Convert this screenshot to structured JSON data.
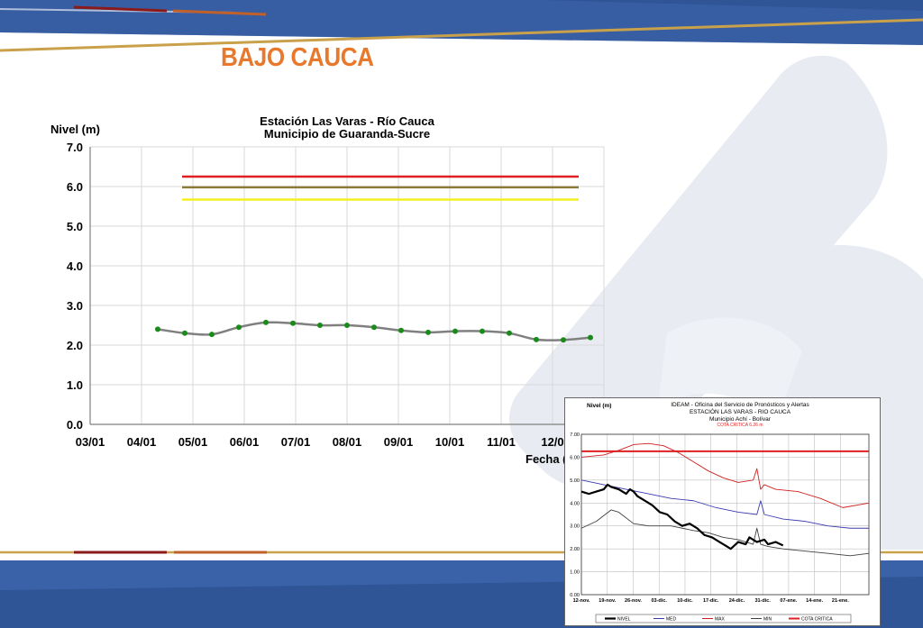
{
  "slide": {
    "title": "BAJO CAUCA"
  },
  "colors": {
    "title": "#e8792c",
    "banner_blue": "#2f5597",
    "gold": "#c9a14a",
    "dark_red": "#8b1a1a"
  },
  "chart_data": [
    {
      "type": "line",
      "title": "Estación Las Varas - Río Cauca",
      "subtitle": "Municipio de Guaranda-Sucre",
      "ylabel": "Nivel (m)",
      "xlabel": "Fecha (",
      "ylim": [
        0,
        7
      ],
      "xlim": [
        0,
        9.5
      ],
      "yticks": [
        "0.0",
        "1.0",
        "2.0",
        "3.0",
        "4.0",
        "5.0",
        "6.0",
        "7.0"
      ],
      "xticks": [
        "03/01",
        "04/01",
        "05/01",
        "06/01",
        "07/01",
        "08/01",
        "09/01",
        "10/01",
        "11/01",
        "12/0"
      ],
      "grid": true,
      "series": [
        {
          "color": "#808080",
          "marker_color": "#1a8a1a",
          "x": [
            1.25,
            1.75,
            2.25,
            2.75,
            3.25,
            3.75,
            4.25,
            4.75,
            5.25,
            5.75,
            6.25,
            6.75,
            7.25,
            7.75,
            8.25,
            8.75,
            9.25
          ],
          "y": [
            2.4,
            2.3,
            2.27,
            2.45,
            2.57,
            2.55,
            2.5,
            2.5,
            2.45,
            2.37,
            2.32,
            2.35,
            2.35,
            2.3,
            2.14,
            2.13,
            2.19
          ]
        }
      ],
      "thresholds": [
        {
          "color": "#e02020",
          "value": 6.25,
          "x0": 1.7,
          "x1": 9.5
        },
        {
          "color": "#8b7a3a",
          "value": 5.98,
          "x0": 1.7,
          "x1": 9.5
        },
        {
          "color": "#f4f020",
          "value": 5.67,
          "x0": 1.7,
          "x1": 9.5
        }
      ]
    },
    {
      "type": "line",
      "title": "IDEAM - Oficina del Servicio de Pronósticos y Alertas",
      "subtitle": "ESTACIÓN LAS VARAS - RIO CAUCA",
      "subtitle2": "Municipio Achí - Bolívar",
      "note": "COTA CRITICA 6.26 m",
      "ylabel": "Nivel (m)",
      "ylim": [
        0,
        7
      ],
      "yticks": [
        "0.00",
        "1.00",
        "2.00",
        "3.00",
        "4.00",
        "5.00",
        "6.00",
        "7.00"
      ],
      "xticks": [
        "12-nov.",
        "19-nov.",
        "26-nov.",
        "03-dic.",
        "10-dic.",
        "17-dic.",
        "24-dic.",
        "31-dic.",
        "07-ene.",
        "14-ene.",
        "21-ene."
      ],
      "grid": true,
      "legend": [
        "NIVEL",
        "MED",
        "MAX",
        "MIN",
        "COTA CRITICA"
      ],
      "series": [
        {
          "name": "NIVEL",
          "color": "#000000",
          "width": 2.2,
          "x": [
            0,
            2,
            4,
            6,
            7,
            8,
            10,
            12,
            13,
            14,
            15,
            17,
            19,
            21,
            23,
            25,
            27,
            29,
            31,
            33,
            35,
            37,
            39,
            40,
            42,
            44,
            45,
            47,
            49,
            50,
            52,
            54
          ],
          "y": [
            4.5,
            4.4,
            4.5,
            4.6,
            4.8,
            4.7,
            4.6,
            4.4,
            4.6,
            4.5,
            4.3,
            4.1,
            3.9,
            3.6,
            3.5,
            3.2,
            3.0,
            3.1,
            2.9,
            2.6,
            2.5,
            2.3,
            2.1,
            2.0,
            2.3,
            2.2,
            2.5,
            2.3,
            2.4,
            2.2,
            2.3,
            2.15
          ]
        },
        {
          "name": "MED",
          "color": "#3b3bb0",
          "width": 0.9,
          "x": [
            0,
            6,
            12,
            18,
            24,
            30,
            36,
            42,
            47,
            48,
            49,
            54,
            60,
            66,
            72,
            77
          ],
          "y": [
            5.0,
            4.8,
            4.6,
            4.4,
            4.2,
            4.1,
            3.8,
            3.6,
            3.5,
            4.1,
            3.5,
            3.3,
            3.2,
            3.0,
            2.9,
            2.9
          ]
        },
        {
          "name": "MAX",
          "color": "#d02020",
          "width": 0.9,
          "x": [
            0,
            6,
            10,
            14,
            18,
            22,
            26,
            30,
            34,
            38,
            42,
            46,
            47,
            48,
            49,
            52,
            58,
            64,
            70,
            77
          ],
          "y": [
            6.0,
            6.1,
            6.3,
            6.55,
            6.6,
            6.5,
            6.2,
            5.8,
            5.4,
            5.1,
            4.9,
            5.0,
            5.5,
            4.6,
            4.8,
            4.6,
            4.5,
            4.2,
            3.8,
            4.0
          ]
        },
        {
          "name": "MIN",
          "color": "#404040",
          "width": 0.9,
          "x": [
            0,
            4,
            8,
            10,
            14,
            18,
            24,
            30,
            34,
            38,
            42,
            46,
            47,
            48,
            50,
            54,
            60,
            66,
            72,
            77
          ],
          "y": [
            2.9,
            3.2,
            3.7,
            3.6,
            3.1,
            3.0,
            3.0,
            2.8,
            2.7,
            2.5,
            2.4,
            2.2,
            2.9,
            2.2,
            2.1,
            2.0,
            1.9,
            1.8,
            1.7,
            1.8
          ]
        },
        {
          "name": "COTA CRITICA",
          "color": "#e02020",
          "width": 2,
          "x": [
            0,
            77
          ],
          "y": [
            6.26,
            6.26
          ]
        }
      ]
    }
  ]
}
